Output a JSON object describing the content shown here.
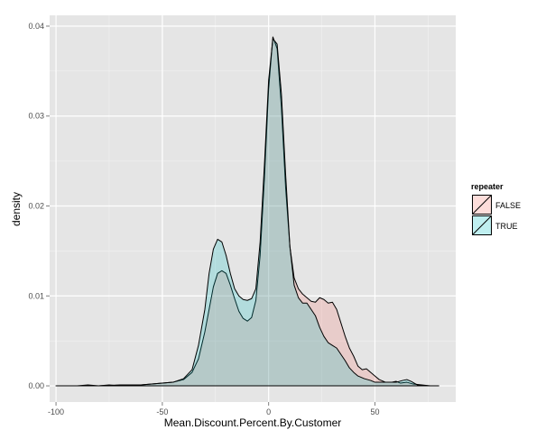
{
  "chart_data": {
    "type": "area",
    "xlabel": "Mean.Discount.Percent.By.Customer",
    "ylabel": "density",
    "xlim": [
      -103,
      88
    ],
    "ylim": [
      -0.0018,
      0.0412
    ],
    "x_ticks": [
      -100,
      -50,
      0,
      50
    ],
    "y_ticks": [
      0.0,
      0.01,
      0.02,
      0.03,
      0.04
    ],
    "x_tick_labels": [
      "-100",
      "-50",
      "0",
      "50"
    ],
    "y_tick_labels": [
      "0.00",
      "0.01",
      "0.02",
      "0.03",
      "0.04"
    ],
    "grid": true,
    "legend": {
      "title": "repeater",
      "position": "right",
      "entries": [
        "FALSE",
        "TRUE"
      ]
    },
    "series": [
      {
        "name": "FALSE",
        "color": "#F8766D",
        "points": [
          [
            -100,
            0.0
          ],
          [
            -90,
            0.0
          ],
          [
            -85,
            0.0001
          ],
          [
            -80,
            0.0
          ],
          [
            -75,
            0.0001
          ],
          [
            -70,
            0.0
          ],
          [
            -65,
            0.0001
          ],
          [
            -60,
            0.0001
          ],
          [
            -55,
            0.0002
          ],
          [
            -50,
            0.0003
          ],
          [
            -45,
            0.0004
          ],
          [
            -40,
            0.0007
          ],
          [
            -36,
            0.0015
          ],
          [
            -33,
            0.003
          ],
          [
            -30,
            0.006
          ],
          [
            -28,
            0.0085
          ],
          [
            -26,
            0.011
          ],
          [
            -24,
            0.0125
          ],
          [
            -22,
            0.0128
          ],
          [
            -20,
            0.0125
          ],
          [
            -18,
            0.0112
          ],
          [
            -16,
            0.0097
          ],
          [
            -14,
            0.0083
          ],
          [
            -12,
            0.0075
          ],
          [
            -10,
            0.0072
          ],
          [
            -8,
            0.0076
          ],
          [
            -6,
            0.0095
          ],
          [
            -4,
            0.0145
          ],
          [
            -2,
            0.023
          ],
          [
            0,
            0.033
          ],
          [
            2,
            0.0388
          ],
          [
            4,
            0.0375
          ],
          [
            6,
            0.031
          ],
          [
            8,
            0.022
          ],
          [
            10,
            0.0155
          ],
          [
            12,
            0.012
          ],
          [
            14,
            0.0108
          ],
          [
            16,
            0.0102
          ],
          [
            18,
            0.0098
          ],
          [
            20,
            0.0094
          ],
          [
            22,
            0.0093
          ],
          [
            24,
            0.0098
          ],
          [
            26,
            0.0096
          ],
          [
            28,
            0.0092
          ],
          [
            30,
            0.0093
          ],
          [
            32,
            0.0085
          ],
          [
            34,
            0.007
          ],
          [
            36,
            0.0055
          ],
          [
            38,
            0.0042
          ],
          [
            40,
            0.0033
          ],
          [
            42,
            0.0022
          ],
          [
            44,
            0.0018
          ],
          [
            46,
            0.0019
          ],
          [
            48,
            0.0015
          ],
          [
            50,
            0.0011
          ],
          [
            52,
            0.0007
          ],
          [
            55,
            0.0004
          ],
          [
            58,
            0.0004
          ],
          [
            60,
            0.0005
          ],
          [
            62,
            0.0003
          ],
          [
            65,
            0.0004
          ],
          [
            68,
            0.0002
          ],
          [
            72,
            0.0001
          ],
          [
            76,
            0.0
          ],
          [
            80,
            0.0
          ]
        ]
      },
      {
        "name": "TRUE",
        "color": "#00BFC4",
        "points": [
          [
            -100,
            0.0
          ],
          [
            -90,
            0.0
          ],
          [
            -80,
            0.0
          ],
          [
            -70,
            0.0001
          ],
          [
            -60,
            0.0001
          ],
          [
            -55,
            0.0002
          ],
          [
            -50,
            0.0003
          ],
          [
            -45,
            0.0004
          ],
          [
            -40,
            0.0008
          ],
          [
            -36,
            0.0018
          ],
          [
            -33,
            0.0045
          ],
          [
            -30,
            0.0085
          ],
          [
            -28,
            0.0125
          ],
          [
            -26,
            0.0152
          ],
          [
            -24,
            0.0163
          ],
          [
            -22,
            0.016
          ],
          [
            -20,
            0.0145
          ],
          [
            -18,
            0.0125
          ],
          [
            -16,
            0.0108
          ],
          [
            -14,
            0.01
          ],
          [
            -12,
            0.0096
          ],
          [
            -10,
            0.0095
          ],
          [
            -8,
            0.0097
          ],
          [
            -6,
            0.0108
          ],
          [
            -4,
            0.016
          ],
          [
            -2,
            0.0245
          ],
          [
            0,
            0.034
          ],
          [
            2,
            0.0386
          ],
          [
            4,
            0.038
          ],
          [
            6,
            0.0325
          ],
          [
            8,
            0.0235
          ],
          [
            10,
            0.0155
          ],
          [
            12,
            0.0112
          ],
          [
            14,
            0.0098
          ],
          [
            16,
            0.0092
          ],
          [
            18,
            0.0092
          ],
          [
            20,
            0.0085
          ],
          [
            22,
            0.0078
          ],
          [
            24,
            0.0065
          ],
          [
            26,
            0.0055
          ],
          [
            28,
            0.0048
          ],
          [
            30,
            0.0045
          ],
          [
            32,
            0.0042
          ],
          [
            34,
            0.0035
          ],
          [
            36,
            0.0028
          ],
          [
            38,
            0.002
          ],
          [
            40,
            0.0015
          ],
          [
            42,
            0.0011
          ],
          [
            45,
            0.0008
          ],
          [
            48,
            0.0006
          ],
          [
            50,
            0.0004
          ],
          [
            55,
            0.0004
          ],
          [
            60,
            0.0004
          ],
          [
            63,
            0.0006
          ],
          [
            65,
            0.0007
          ],
          [
            67,
            0.0005
          ],
          [
            70,
            0.0001
          ],
          [
            75,
            0.0
          ],
          [
            80,
            0.0
          ]
        ]
      }
    ]
  }
}
